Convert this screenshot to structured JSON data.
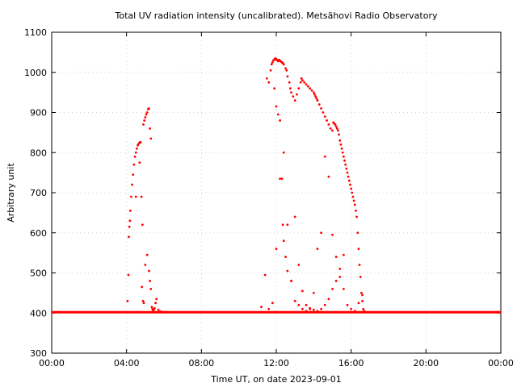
{
  "chart_data": {
    "type": "scatter",
    "title": "Total UV radiation intensity (uncalibrated). Metsähovi Radio Observatory",
    "xlabel": "Time UT, on date 2023-09-01",
    "ylabel": "Arbitrary unit",
    "xlim": [
      0,
      24
    ],
    "ylim": [
      300,
      1100
    ],
    "x_ticks": [
      0,
      4,
      8,
      12,
      16,
      20,
      24
    ],
    "x_tick_labels": [
      "00:00",
      "04:00",
      "08:00",
      "12:00",
      "16:00",
      "20:00",
      "00:00"
    ],
    "y_ticks": [
      300,
      400,
      500,
      600,
      700,
      800,
      900,
      1000,
      1100
    ],
    "y_tick_labels": [
      "300",
      "400",
      "500",
      "600",
      "700",
      "800",
      "900",
      "1000",
      "1100"
    ],
    "grid": true,
    "color": "#ff0000",
    "baseline": {
      "value": 402,
      "x_start": 0,
      "x_end": 24
    },
    "series": [
      {
        "x": [
          4.05,
          4.1,
          4.12,
          4.15,
          4.18,
          4.2,
          4.25,
          4.3,
          4.35,
          4.4,
          4.45,
          4.5,
          4.55,
          4.6,
          4.65,
          4.7,
          4.75,
          4.8,
          4.85,
          4.9,
          4.95,
          5.0,
          5.05,
          5.1,
          5.15,
          5.2,
          5.25,
          5.3,
          4.5,
          4.7,
          4.82,
          4.88,
          4.92,
          5.0,
          5.1,
          5.2,
          5.25,
          5.3,
          5.35,
          5.38,
          5.42,
          5.45,
          5.5,
          5.55,
          5.6,
          5.7,
          5.8,
          5.9,
          6.0,
          6.1,
          11.2,
          11.4,
          11.5,
          11.6,
          11.7,
          11.75,
          11.8,
          11.85,
          11.9,
          11.95,
          12.0,
          12.05,
          12.1,
          12.15,
          12.2,
          12.25,
          12.3,
          12.35,
          12.4,
          12.5,
          12.55,
          12.6,
          12.7,
          12.75,
          12.8,
          12.9,
          13.0,
          13.1,
          13.2,
          13.3,
          13.35,
          13.4,
          13.5,
          13.6,
          13.7,
          13.8,
          13.9,
          14.0,
          14.05,
          14.1,
          14.15,
          14.2,
          14.3,
          14.4,
          14.5,
          14.6,
          14.7,
          14.8,
          14.9,
          15.0,
          15.05,
          15.1,
          15.15,
          15.2,
          15.25,
          15.3,
          15.35,
          15.4,
          15.45,
          15.5,
          15.55,
          15.6,
          15.65,
          15.7,
          15.75,
          15.8,
          15.85,
          15.9,
          15.95,
          16.0,
          16.05,
          16.1,
          16.15,
          16.2,
          16.25,
          16.3,
          16.35,
          16.4,
          16.45,
          16.5,
          16.55,
          16.6,
          16.65,
          16.7,
          11.9,
          12.0,
          12.1,
          12.2,
          12.3,
          12.35,
          12.4,
          12.5,
          12.6,
          12.8,
          13.0,
          13.2,
          13.4,
          13.6,
          13.8,
          14.0,
          14.2,
          14.4,
          14.6,
          14.8,
          15.0,
          15.2,
          15.4,
          15.6,
          15.8,
          16.0,
          16.2,
          16.4,
          16.6,
          11.6,
          11.8,
          12.0,
          12.2,
          12.4,
          12.6,
          12.8,
          13.0,
          13.2,
          13.4,
          13.6,
          13.8,
          14.0,
          14.2,
          14.4,
          14.6,
          14.8,
          15.0,
          15.2,
          15.4,
          15.6
        ],
        "y": [
          430,
          495,
          590,
          615,
          630,
          655,
          690,
          720,
          745,
          770,
          790,
          800,
          810,
          818,
          822,
          825,
          826,
          690,
          620,
          870,
          880,
          888,
          895,
          900,
          908,
          910,
          860,
          835,
          690,
          775,
          465,
          430,
          425,
          520,
          545,
          505,
          480,
          460,
          415,
          410,
          405,
          408,
          412,
          425,
          435,
          408,
          404,
          403,
          402,
          403,
          415,
          495,
          985,
          975,
          1005,
          1020,
          1025,
          1030,
          1032,
          1035,
          1033,
          1030,
          1028,
          1031,
          1029,
          1027,
          1025,
          1023,
          1020,
          1010,
          1005,
          990,
          975,
          960,
          950,
          940,
          930,
          945,
          960,
          975,
          985,
          980,
          975,
          970,
          965,
          960,
          955,
          950,
          945,
          940,
          935,
          930,
          920,
          910,
          900,
          890,
          880,
          870,
          860,
          855,
          875,
          872,
          870,
          865,
          860,
          855,
          845,
          830,
          820,
          810,
          800,
          790,
          780,
          770,
          760,
          750,
          740,
          730,
          720,
          710,
          700,
          690,
          680,
          670,
          655,
          640,
          600,
          560,
          520,
          490,
          450,
          430,
          410,
          405,
          960,
          915,
          895,
          880,
          735,
          620,
          580,
          540,
          505,
          480,
          430,
          420,
          410,
          405,
          410,
          450,
          560,
          600,
          790,
          740,
          595,
          540,
          490,
          460,
          420,
          410,
          405,
          425,
          445,
          410,
          425,
          560,
          735,
          800,
          620,
          480,
          640,
          520,
          455,
          420,
          412,
          408,
          405,
          410,
          420,
          435,
          460,
          480,
          510,
          545
        ]
      }
    ]
  }
}
